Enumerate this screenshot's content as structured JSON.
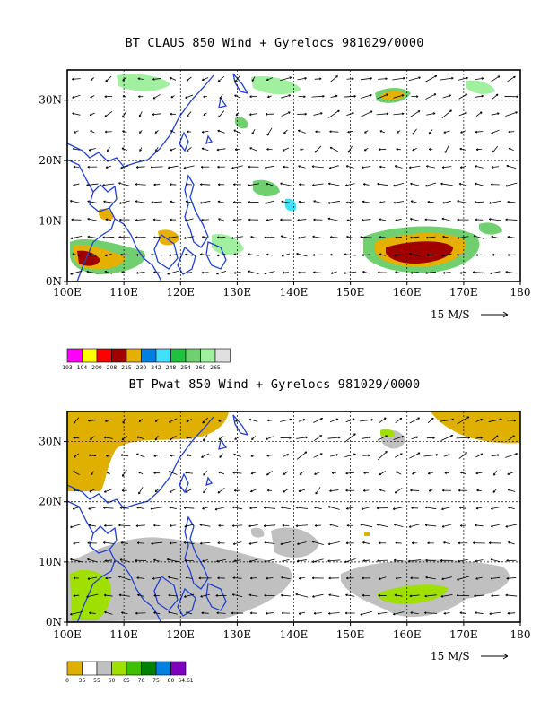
{
  "panels": [
    {
      "title": "BT CLAUS 850 Wind + Gyrelocs 981029/0000",
      "lat_labels": [
        "30N",
        "20N",
        "10N",
        "0N"
      ],
      "lon_labels": [
        "100E",
        "110E",
        "120E",
        "130E",
        "140E",
        "150E",
        "160E",
        "170E",
        "180"
      ],
      "scale_label": "15 M/S",
      "legend_values": [
        "193",
        "194",
        "200",
        "208",
        "215",
        "230",
        "242",
        "248",
        "254",
        "260",
        "265"
      ],
      "legend_colors": [
        "#ff00ff",
        "#ffff00",
        "#ff0000",
        "#a00000",
        "#e6b000",
        "#0080e0",
        "#40e0ff",
        "#20c040",
        "#70d070",
        "#a0f0a0",
        "#e0e0e0"
      ]
    },
    {
      "title": "BT Pwat 850 Wind + Gyrelocs 981029/0000",
      "lat_labels": [
        "30N",
        "20N",
        "10N",
        "0N"
      ],
      "lon_labels": [
        "100E",
        "110E",
        "120E",
        "130E",
        "140E",
        "150E",
        "160E",
        "170E",
        "180"
      ],
      "scale_label": "15 M/S",
      "legend_values": [
        "0",
        "35",
        "55",
        "60",
        "65",
        "70",
        "75",
        "80",
        "64.61"
      ],
      "legend_colors": [
        "#e0b000",
        "#ffffff",
        "#c0c0c0",
        "#a0e000",
        "#40c000",
        "#008000",
        "#0080e0",
        "#8000c0"
      ]
    }
  ]
}
